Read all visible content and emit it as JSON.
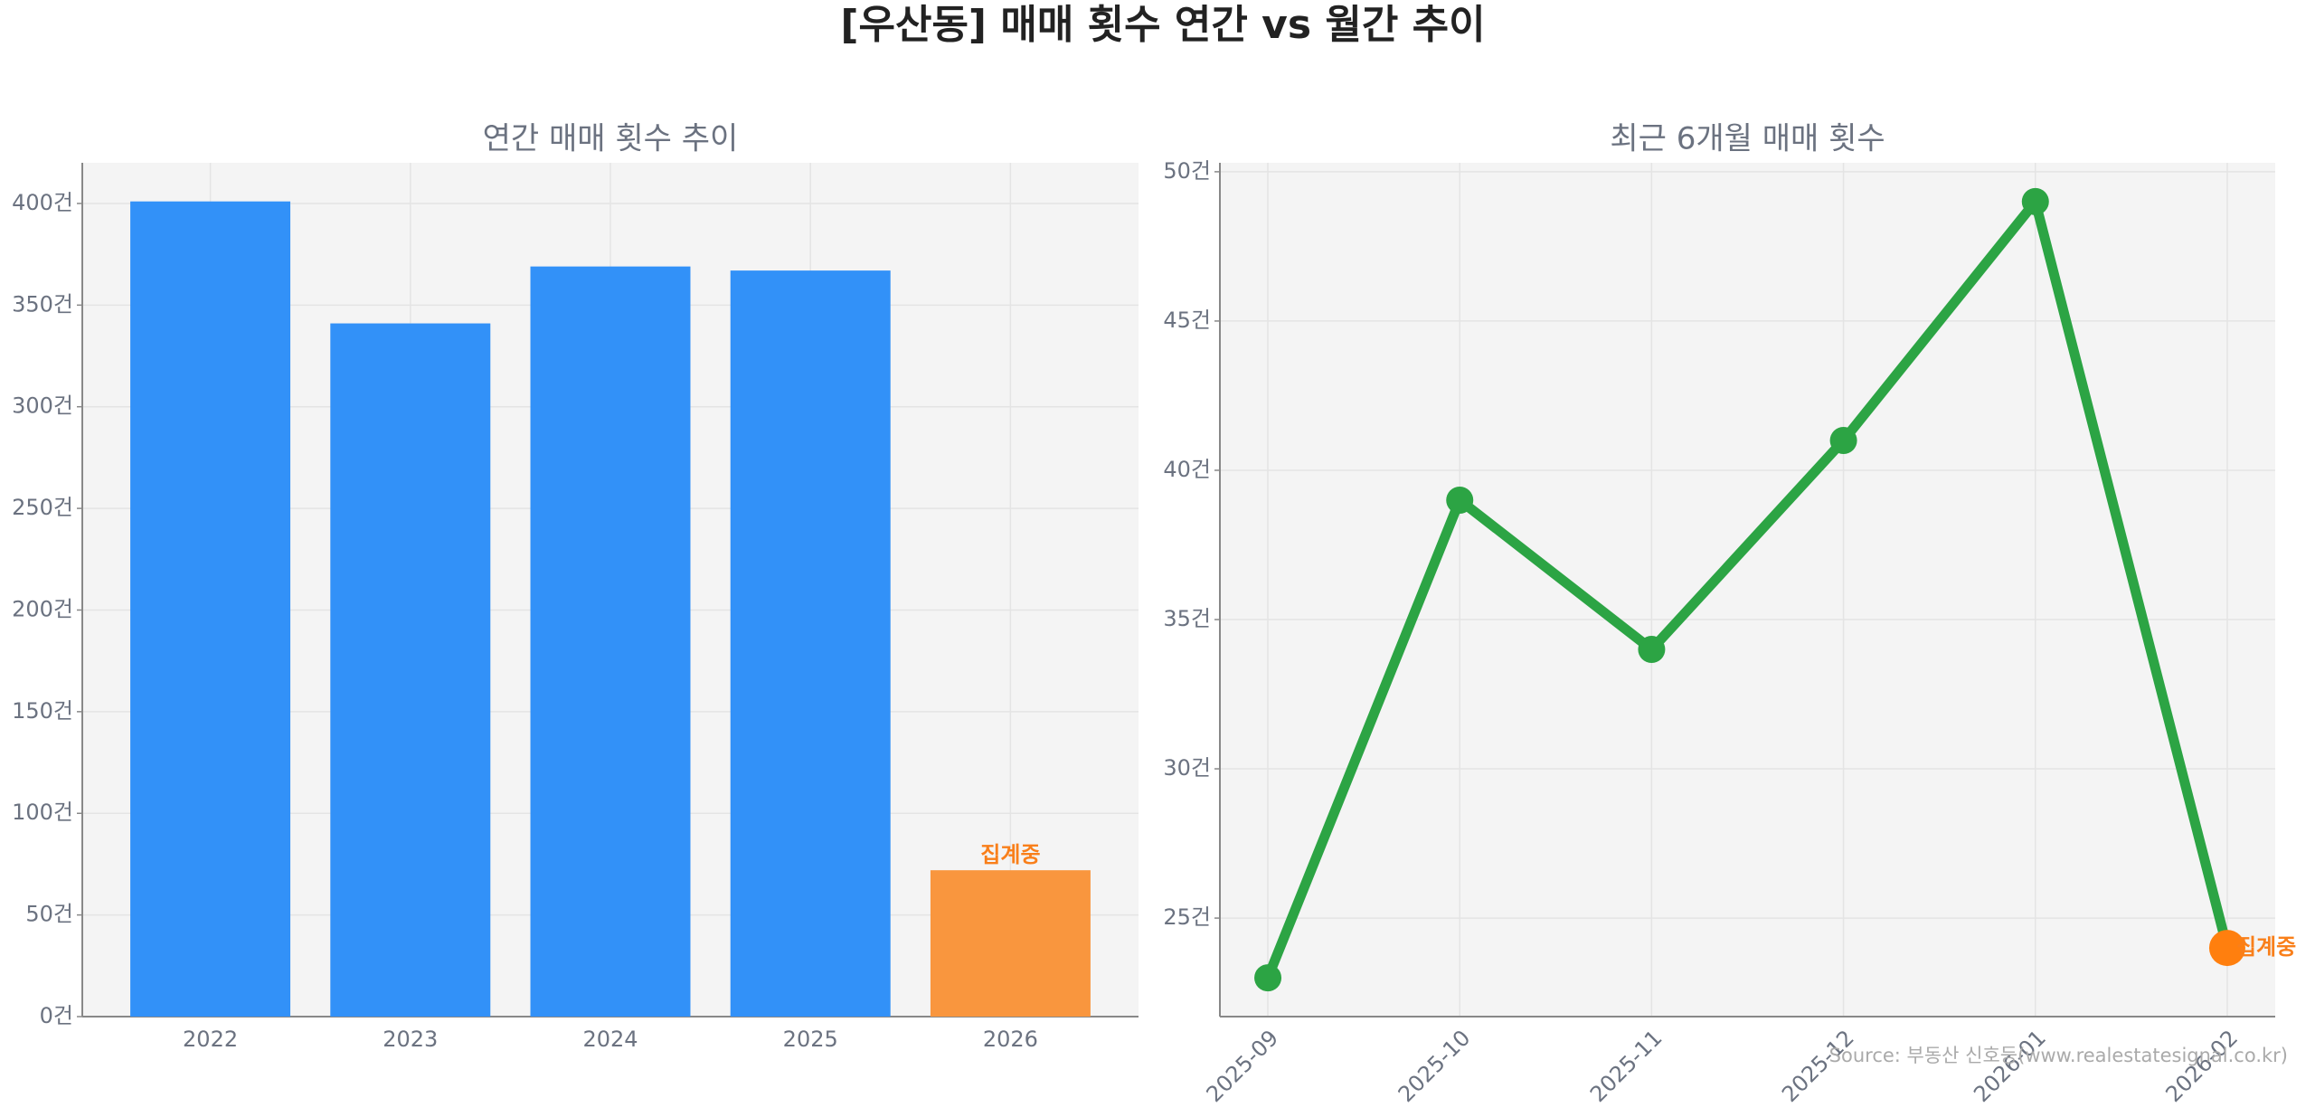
{
  "title": "[우산동] 매매 횟수 연간 vs 월간 추이",
  "source": "Source: 부동산 신호등(www.realestatesignal.co.kr)",
  "chart_data": [
    {
      "type": "bar",
      "title": "연간 매매 횟수 추이",
      "categories": [
        "2022",
        "2023",
        "2024",
        "2025",
        "2026"
      ],
      "values": [
        401,
        341,
        369,
        367,
        72
      ],
      "colors": [
        "#3291f8",
        "#3291f8",
        "#3291f8",
        "#3291f8",
        "#f9963e"
      ],
      "annotation": "집계중",
      "annotation_color": "#f97f1a",
      "ylim": [
        0,
        420
      ],
      "yticks": [
        {
          "value": 0,
          "label": "0건"
        },
        {
          "value": 50,
          "label": "50건"
        },
        {
          "value": 100,
          "label": "100건"
        },
        {
          "value": 150,
          "label": "150건"
        },
        {
          "value": 200,
          "label": "200건"
        },
        {
          "value": 250,
          "label": "250건"
        },
        {
          "value": 300,
          "label": "300건"
        },
        {
          "value": 350,
          "label": "350건"
        },
        {
          "value": 400,
          "label": "400건"
        }
      ],
      "grid": true
    },
    {
      "type": "line",
      "title": "최근 6개월 매매 횟수",
      "categories": [
        "2025-09",
        "2025-10",
        "2025-11",
        "2025-12",
        "2026-01",
        "2026-02"
      ],
      "values": [
        23,
        39,
        34,
        41,
        49,
        24
      ],
      "color": "#2ca444",
      "marker_colors": [
        "#2ca444",
        "#2ca444",
        "#2ca444",
        "#2ca444",
        "#2ca444",
        "#ff7f0e"
      ],
      "annotation": "집계중",
      "annotation_color": "#f97f1a",
      "ylim": [
        21.7,
        50.3
      ],
      "yticks": [
        {
          "value": 25,
          "label": "25건"
        },
        {
          "value": 30,
          "label": "30건"
        },
        {
          "value": 35,
          "label": "35건"
        },
        {
          "value": 40,
          "label": "40건"
        },
        {
          "value": 45,
          "label": "45건"
        },
        {
          "value": 50,
          "label": "50건"
        }
      ],
      "grid": true
    }
  ]
}
